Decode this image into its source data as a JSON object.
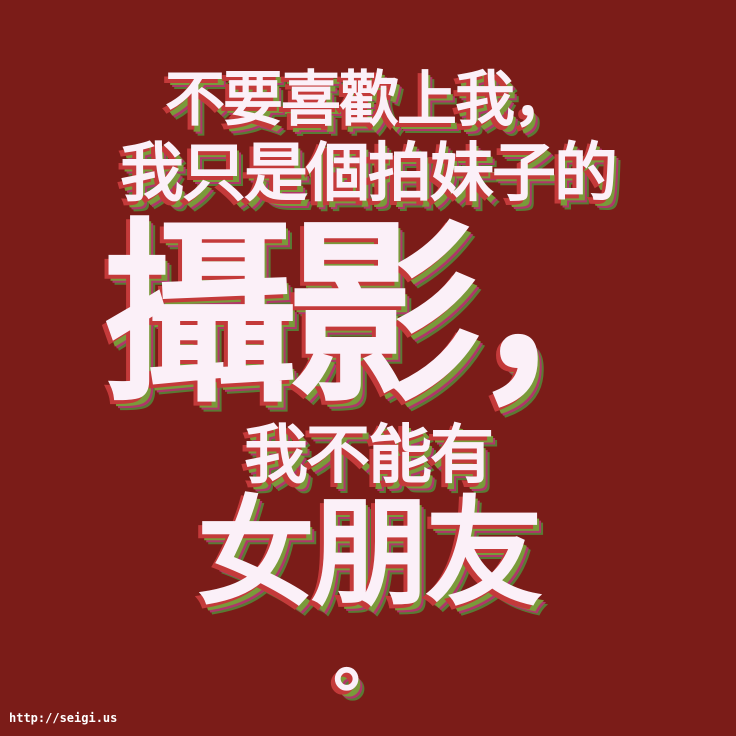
{
  "poster": {
    "lines": [
      "不要喜歡上我，",
      "我只是個拍妹子的",
      "攝影，",
      "我不能有",
      "女朋友",
      "。"
    ],
    "website": "http://seigi.us",
    "colors": {
      "background": "#7b1c18",
      "text": "#fbf0f8",
      "shadow_red": "#c43a3a",
      "shadow_green": "#7a9a3a",
      "shadow_magenta": "#b0366a"
    }
  }
}
